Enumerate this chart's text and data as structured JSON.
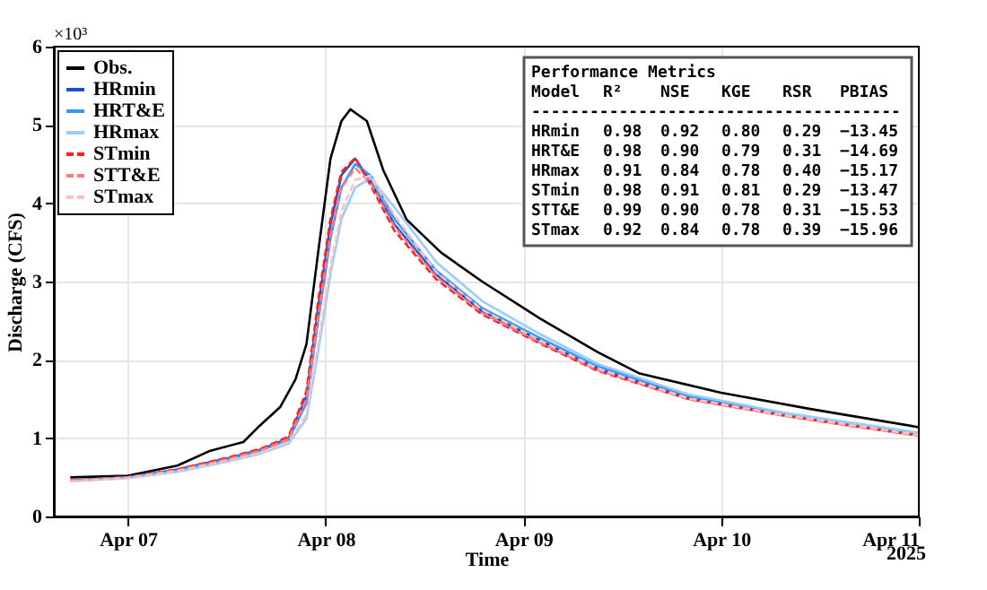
{
  "chart_data": {
    "type": "line",
    "xlabel": "Time",
    "ylabel": "Discharge (CFS)",
    "x": [
      "2025-04-06T17:00",
      "2025-04-07T00:00",
      "2025-04-07T06:00",
      "2025-04-07T12:00",
      "2025-04-07T16:00",
      "2025-04-07T19:30",
      "2025-04-07T21:40",
      "2025-04-07T23:05",
      "2025-04-08T00:35",
      "2025-04-08T01:55",
      "2025-04-08T03:35",
      "2025-04-08T05:30",
      "2025-04-08T08:20",
      "2025-04-08T13:25",
      "2025-04-08T19:00",
      "2025-04-09T02:00",
      "2025-04-09T09:00",
      "2025-04-09T20:00",
      "2025-04-10T08:00",
      "2025-04-11T00:00"
    ],
    "series": [
      {
        "name": "Obs.",
        "color": "#000000",
        "line_style": "solid",
        "x": [
          "2025-04-06T17:00",
          "2025-04-07T00:00",
          "2025-04-07T06:00",
          "2025-04-07T10:00",
          "2025-04-07T14:00",
          "2025-04-07T16:00",
          "2025-04-07T18:30",
          "2025-04-07T20:20",
          "2025-04-07T21:40",
          "2025-04-07T23:05",
          "2025-04-08T00:35",
          "2025-04-08T01:55",
          "2025-04-08T03:00",
          "2025-04-08T05:00",
          "2025-04-08T07:00",
          "2025-04-08T09:50",
          "2025-04-08T14:00",
          "2025-04-08T19:00",
          "2025-04-09T02:00",
          "2025-04-09T09:00",
          "2025-04-09T14:00",
          "2025-04-10T00:00",
          "2025-04-10T11:00",
          "2025-04-11T00:00"
        ],
        "values": [
          0.5,
          0.52,
          0.65,
          0.84,
          0.95,
          1.16,
          1.4,
          1.75,
          2.2,
          3.37,
          4.57,
          5.05,
          5.2,
          5.05,
          4.42,
          3.79,
          3.37,
          3.0,
          2.53,
          2.1,
          1.83,
          1.58,
          1.37,
          1.14
        ]
      },
      {
        "name": "HRmin",
        "color": "#1f4fd0",
        "line_style": "solid",
        "values": [
          0.46,
          0.5,
          0.6,
          0.74,
          0.85,
          1.0,
          1.54,
          2.67,
          3.73,
          4.36,
          4.57,
          4.27,
          3.73,
          3.09,
          2.62,
          2.25,
          1.89,
          1.52,
          1.3,
          1.05
        ]
      },
      {
        "name": "HRT&E",
        "color": "#3399ff",
        "line_style": "solid",
        "values": [
          0.46,
          0.5,
          0.59,
          0.73,
          0.84,
          0.98,
          1.45,
          2.5,
          3.55,
          4.2,
          4.5,
          4.35,
          3.8,
          3.14,
          2.66,
          2.28,
          1.92,
          1.54,
          1.31,
          1.06
        ]
      },
      {
        "name": "HRmax",
        "color": "#99ccff",
        "line_style": "solid",
        "values": [
          0.45,
          0.49,
          0.57,
          0.7,
          0.8,
          0.93,
          1.25,
          2.1,
          3.1,
          3.8,
          4.2,
          4.32,
          3.95,
          3.25,
          2.75,
          2.33,
          1.95,
          1.56,
          1.32,
          1.07
        ]
      },
      {
        "name": "STmin",
        "color": "#ff2020",
        "line_style": "dashed",
        "values": [
          0.46,
          0.5,
          0.6,
          0.75,
          0.86,
          1.02,
          1.6,
          2.75,
          3.8,
          4.4,
          4.58,
          4.22,
          3.65,
          3.03,
          2.58,
          2.21,
          1.86,
          1.5,
          1.28,
          1.03
        ]
      },
      {
        "name": "STT&E",
        "color": "#ff7a7a",
        "line_style": "dashed",
        "values": [
          0.46,
          0.5,
          0.59,
          0.73,
          0.84,
          0.99,
          1.5,
          2.55,
          3.6,
          4.2,
          4.45,
          4.25,
          3.7,
          3.06,
          2.6,
          2.22,
          1.87,
          1.5,
          1.28,
          1.03
        ]
      },
      {
        "name": "STmax",
        "color": "#ffc0c0",
        "line_style": "dashed",
        "values": [
          0.45,
          0.49,
          0.58,
          0.71,
          0.81,
          0.95,
          1.3,
          2.2,
          3.2,
          3.9,
          4.3,
          4.35,
          3.85,
          3.12,
          2.64,
          2.25,
          1.89,
          1.51,
          1.29,
          1.04
        ]
      }
    ],
    "xlim": [
      "2025-04-06T15:00",
      "2025-04-11T00:00"
    ],
    "xticks": [
      {
        "value": "2025-04-07",
        "label": "Apr 07"
      },
      {
        "value": "2025-04-08",
        "label": "Apr 08"
      },
      {
        "value": "2025-04-09",
        "label": "Apr 09"
      },
      {
        "value": "2025-04-10",
        "label": "Apr 10"
      },
      {
        "value": "2025-04-11",
        "label": "Apr 11"
      }
    ],
    "ylim": [
      0,
      6
    ],
    "yticks": [
      0,
      1,
      2,
      3,
      4,
      5,
      6
    ],
    "grid": true,
    "legend": "top left",
    "annotations": [
      "×10³",
      "2025",
      "Performance Metrics",
      "Model R² NSE KGE RSR PBIAS",
      "--------------------------------------",
      "HRmin 0.98 0.92 0.80 0.29 −13.45",
      "HRT&E 0.98 0.90 0.79 0.31 −14.69",
      "HRmax 0.91 0.84 0.78 0.40 −15.17",
      "STmin 0.98 0.91 0.81 0.29 −13.47",
      "STT&E 0.99 0.90 0.78 0.31 −15.53",
      "STmax 0.92 0.84 0.78 0.39 −15.96"
    ]
  }
}
